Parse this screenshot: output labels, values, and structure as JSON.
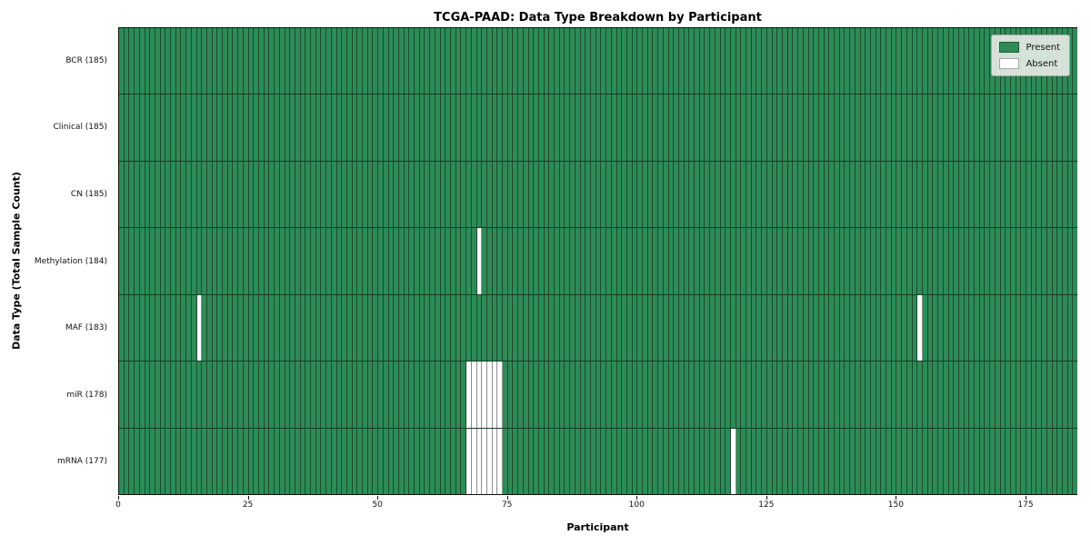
{
  "chart_data": {
    "type": "heatmap",
    "title": "TCGA-PAAD: Data Type Breakdown by Participant",
    "xlabel": "Participant",
    "ylabel": "Data Type (Total Sample Count)",
    "x_ticks": [
      0,
      25,
      50,
      75,
      100,
      125,
      150,
      175
    ],
    "n_participants": 185,
    "rows": [
      {
        "label": "BCR (185)",
        "total": 185,
        "absent": []
      },
      {
        "label": "Clinical (185)",
        "total": 185,
        "absent": []
      },
      {
        "label": "CN (185)",
        "total": 185,
        "absent": []
      },
      {
        "label": "Methylation (184)",
        "total": 184,
        "absent": [
          69
        ]
      },
      {
        "label": "MAF (183)",
        "total": 183,
        "absent": [
          15,
          154
        ]
      },
      {
        "label": "miR (178)",
        "total": 178,
        "absent": [
          67,
          68,
          69,
          70,
          71,
          72,
          73
        ]
      },
      {
        "label": "mRNA (177)",
        "total": 177,
        "absent": [
          67,
          68,
          69,
          70,
          71,
          72,
          73,
          118
        ]
      }
    ],
    "colors": {
      "present": "#2e8b57",
      "absent": "#ffffff"
    },
    "legend": [
      {
        "label": "Present",
        "color": "#2e8b57"
      },
      {
        "label": "Absent",
        "color": "#ffffff"
      }
    ],
    "legend_position": "upper right",
    "grid": "cell-borders"
  }
}
